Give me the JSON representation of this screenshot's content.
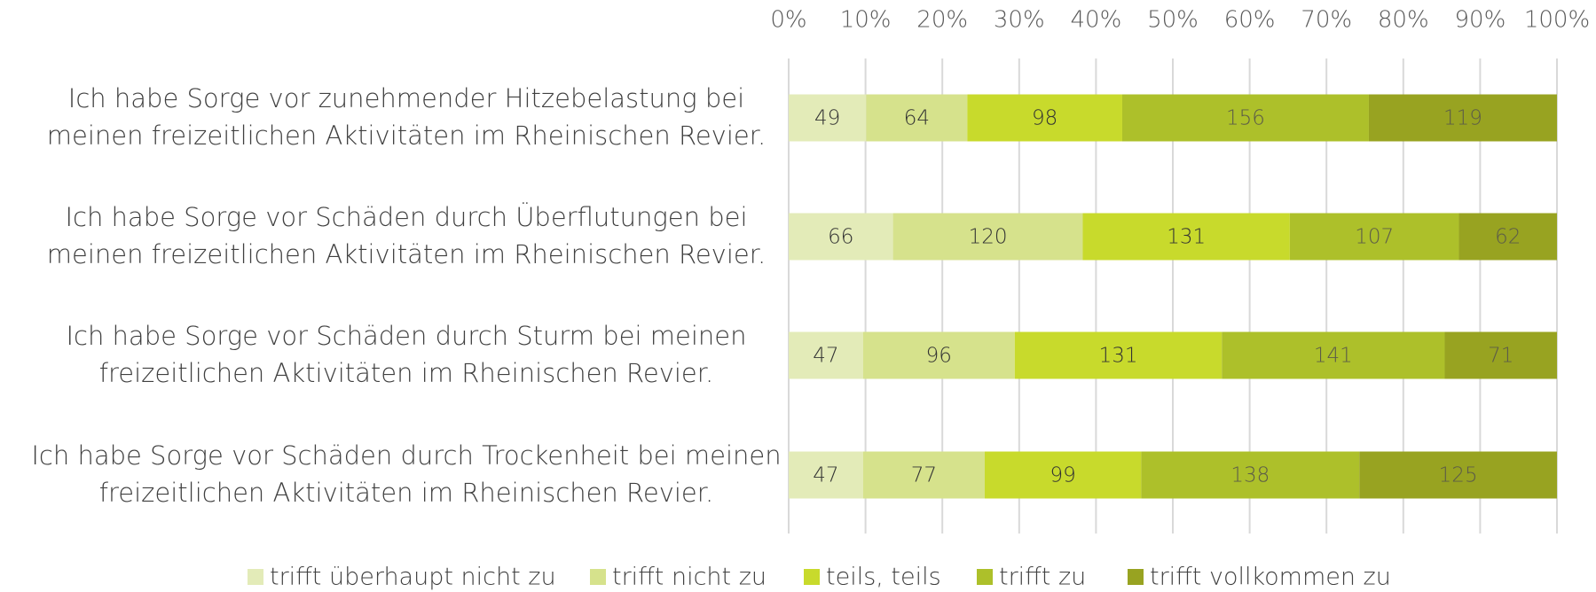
{
  "chart_data": {
    "type": "bar",
    "orientation": "horizontal",
    "stacked": "percent",
    "categories": [
      [
        "Ich habe Sorge vor zunehmender Hitzebelastung bei",
        "meinen freizeitlichen Aktivitäten im Rheinischen Revier."
      ],
      [
        "Ich habe Sorge vor Schäden durch Überflutungen bei",
        "meinen freizeitlichen Aktivitäten im Rheinischen Revier."
      ],
      [
        "Ich habe Sorge vor Schäden durch Sturm bei meinen",
        "freizeitlichen Aktivitäten im Rheinischen Revier."
      ],
      [
        "Ich habe Sorge vor Schäden durch Trockenheit bei meinen",
        "freizeitlichen Aktivitäten im Rheinischen Revier."
      ]
    ],
    "series": [
      {
        "name": "trifft überhaupt nicht zu",
        "color": "#e3ebb8",
        "values": [
          49,
          66,
          47,
          47
        ]
      },
      {
        "name": "trifft nicht zu",
        "color": "#d6e28c",
        "values": [
          64,
          120,
          96,
          77
        ]
      },
      {
        "name": "teils, teils",
        "color": "#c8da2c",
        "values": [
          98,
          131,
          131,
          99
        ]
      },
      {
        "name": "trifft zu",
        "color": "#adc02a",
        "values": [
          156,
          107,
          141,
          138
        ]
      },
      {
        "name": "trifft vollkommen zu",
        "color": "#98a321",
        "values": [
          119,
          62,
          71,
          125
        ]
      }
    ],
    "xlim": [
      0,
      100
    ],
    "xticks": [
      {
        "value": 0,
        "label": "0%"
      },
      {
        "value": 10,
        "label": "10%"
      },
      {
        "value": 20,
        "label": "20%"
      },
      {
        "value": 30,
        "label": "30%"
      },
      {
        "value": 40,
        "label": "40%"
      },
      {
        "value": 50,
        "label": "50%"
      },
      {
        "value": 60,
        "label": "60%"
      },
      {
        "value": 70,
        "label": "70%"
      },
      {
        "value": 80,
        "label": "80%"
      },
      {
        "value": 90,
        "label": "90%"
      },
      {
        "value": 100,
        "label": "100%"
      }
    ],
    "grid": true,
    "legend": "bottom"
  }
}
